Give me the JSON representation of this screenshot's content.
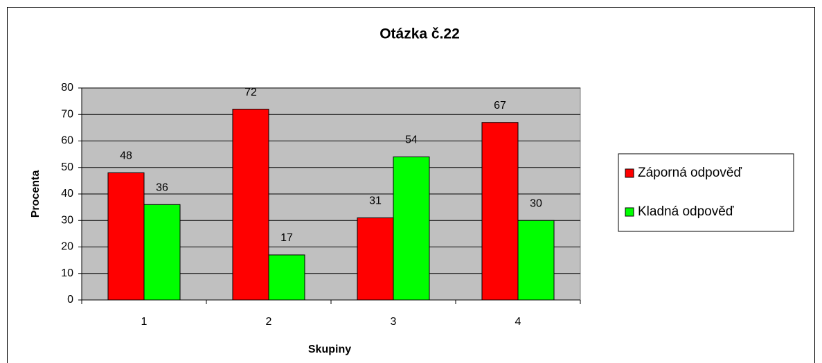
{
  "chart_data": {
    "type": "bar",
    "title": "Otázka č.22",
    "x_label": "Skupiny",
    "y_label": "Procenta",
    "categories": [
      "1",
      "2",
      "3",
      "4"
    ],
    "series": [
      {
        "name": "Záporná odpověď",
        "color": "#ff0000",
        "values": [
          48,
          72,
          31,
          67
        ]
      },
      {
        "name": "Kladná odpověď",
        "color": "#00ff00",
        "values": [
          36,
          17,
          54,
          30
        ]
      }
    ],
    "ylim": [
      0,
      80
    ],
    "yticks": [
      0,
      10,
      20,
      30,
      40,
      50,
      60,
      70,
      80
    ],
    "grid": true,
    "plot_background": "#c0c0c0",
    "legend": "right"
  }
}
